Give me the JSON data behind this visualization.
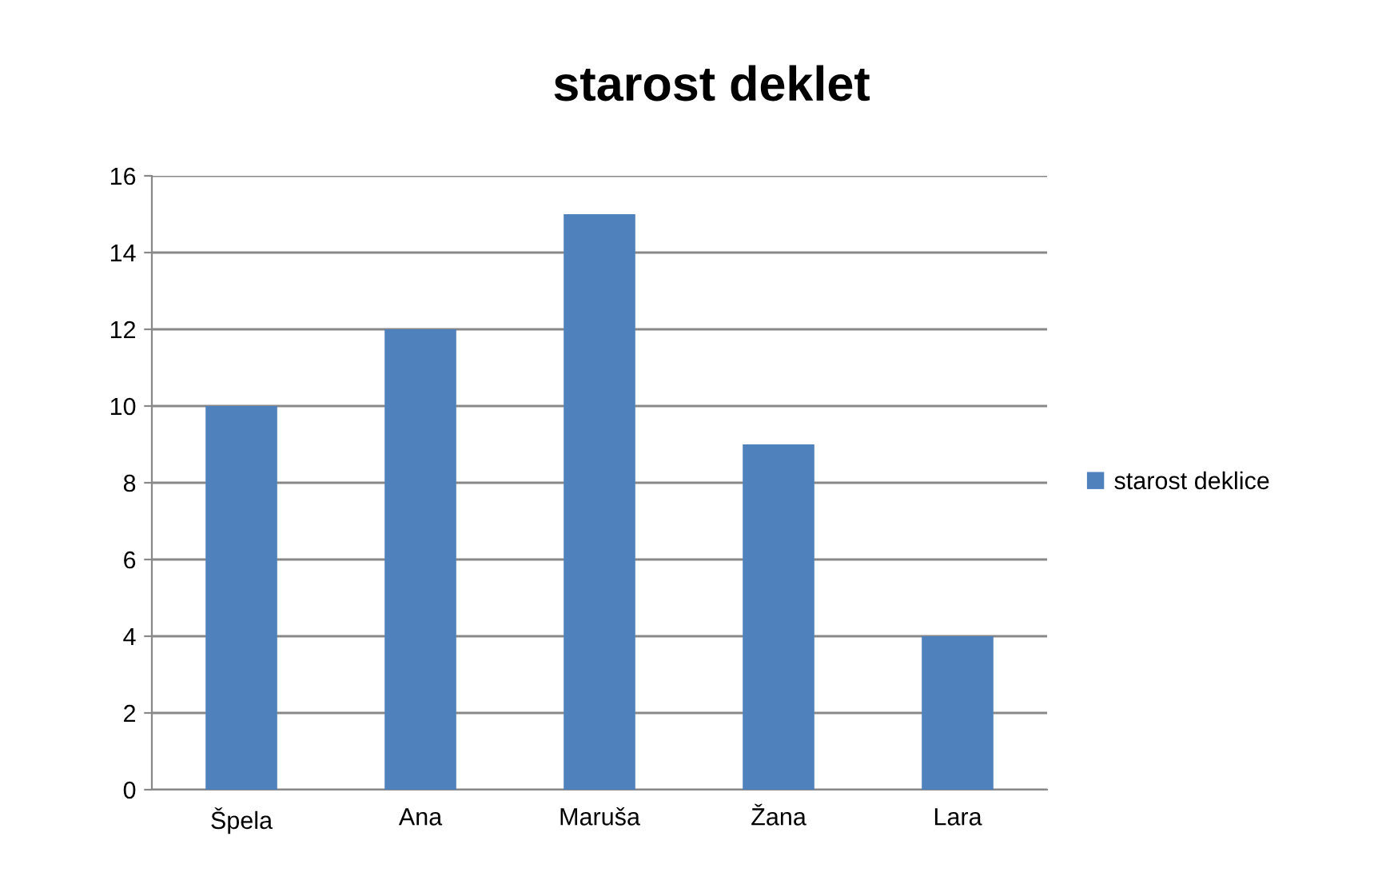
{
  "chart_data": {
    "type": "bar",
    "title": "starost deklet",
    "categories": [
      "Špela",
      "Ana",
      "Maruša",
      "Žana",
      "Lara"
    ],
    "series": [
      {
        "name": "starost deklice",
        "color": "#4f81bd",
        "values": [
          10,
          12,
          15,
          9,
          4
        ]
      }
    ],
    "ylim": [
      0,
      16
    ],
    "yticks": [
      0,
      2,
      4,
      6,
      8,
      10,
      12,
      14,
      16
    ],
    "grid": "y",
    "legend": "right"
  }
}
